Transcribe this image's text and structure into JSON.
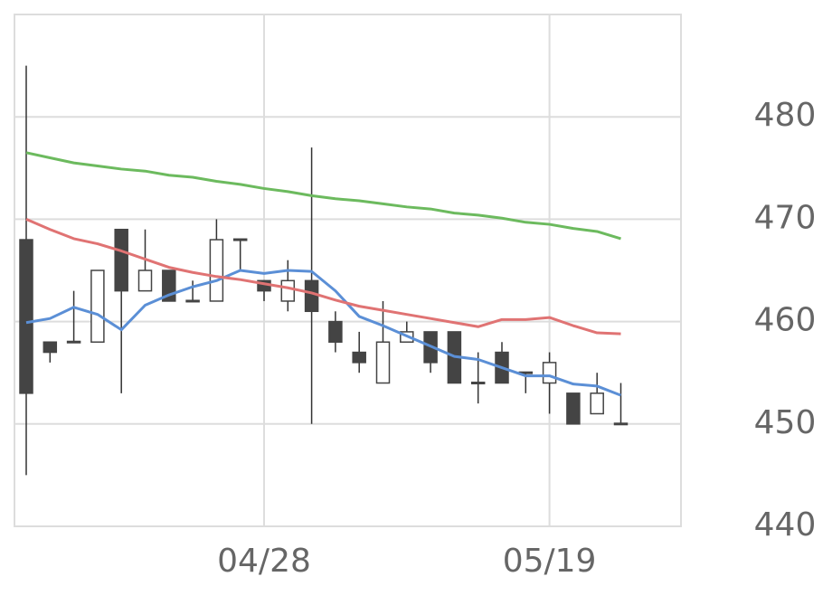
{
  "chart_data": {
    "type": "candlestick",
    "categories": [
      null,
      null,
      null,
      null,
      null,
      null,
      null,
      null,
      null,
      null,
      "04/28",
      null,
      null,
      null,
      null,
      null,
      null,
      null,
      null,
      null,
      null,
      null,
      "05/19",
      null,
      null,
      null
    ],
    "candles": {
      "open": [
        468,
        458,
        458,
        458,
        469,
        463,
        465,
        462,
        462,
        468,
        464,
        462,
        464,
        460,
        457,
        454,
        458,
        459,
        459,
        454,
        457,
        455,
        454,
        453,
        451,
        450
      ],
      "high": [
        485,
        458,
        463,
        465,
        469,
        469,
        465,
        464,
        470,
        468,
        464,
        466,
        477,
        461,
        459,
        462,
        460,
        459,
        459,
        457,
        458,
        455,
        457,
        453,
        455,
        454
      ],
      "low": [
        445,
        456,
        458,
        458,
        453,
        463,
        462,
        462,
        462,
        465,
        462,
        461,
        450,
        457,
        455,
        454,
        458,
        455,
        454,
        452,
        454,
        453,
        451,
        450,
        451,
        450
      ],
      "close": [
        453,
        457,
        458,
        465,
        463,
        465,
        462,
        462,
        468,
        468,
        463,
        464,
        461,
        458,
        456,
        458,
        459,
        456,
        454,
        454,
        454,
        455,
        456,
        450,
        453,
        450
      ],
      "up_color": "#ffffff",
      "down_color": "#444444",
      "edge_color": "#444444"
    },
    "series": [
      {
        "color": "#5b8fd6",
        "values": [
          459.9,
          460.3,
          461.4,
          460.7,
          459.2,
          461.6,
          462.6,
          463.4,
          464.0,
          465.0,
          464.7,
          465.0,
          464.9,
          463.0,
          460.5,
          459.6,
          458.6,
          457.6,
          456.6,
          456.3,
          455.5,
          454.7,
          454.7,
          453.9,
          453.7,
          452.8
        ]
      },
      {
        "color": "#e07373",
        "values": [
          470.0,
          469.0,
          468.1,
          467.6,
          466.9,
          466.1,
          465.3,
          464.8,
          464.4,
          464.1,
          463.7,
          463.3,
          462.8,
          462.1,
          461.5,
          461.1,
          460.7,
          460.3,
          459.9,
          459.5,
          460.2,
          460.2,
          460.4,
          459.6,
          458.9,
          458.8
        ]
      },
      {
        "color": "#6cba5e",
        "values": [
          476.5,
          476.0,
          475.5,
          475.2,
          474.9,
          474.7,
          474.3,
          474.1,
          473.7,
          473.4,
          473.0,
          472.7,
          472.3,
          472.0,
          471.8,
          471.5,
          471.2,
          471.0,
          470.6,
          470.4,
          470.1,
          469.7,
          469.5,
          469.1,
          468.8,
          468.1
        ]
      }
    ],
    "ylim": [
      440,
      490
    ],
    "yticks": [
      440,
      450,
      460,
      470,
      480
    ],
    "grid": true
  }
}
